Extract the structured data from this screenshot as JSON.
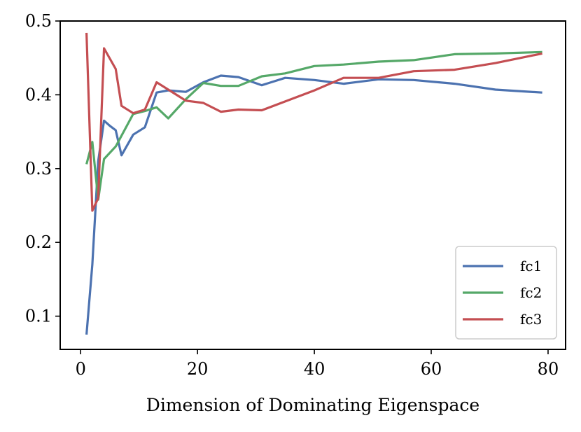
{
  "chart_data": {
    "type": "line",
    "title": "",
    "xlabel": "Dimension of Dominating Eigenspace",
    "ylabel": "",
    "xlim": [
      -3.5,
      83
    ],
    "ylim": [
      0.055,
      0.5
    ],
    "xticks": [
      0,
      20,
      40,
      60,
      80
    ],
    "xtick_labels": [
      "0",
      "20",
      "40",
      "60",
      "80"
    ],
    "yticks": [
      0.1,
      0.2,
      0.3,
      0.4,
      0.5
    ],
    "ytick_labels": [
      "0.1",
      "0.2",
      "0.3",
      "0.4",
      "0.5"
    ],
    "grid": false,
    "legend_position": "lower-right",
    "series": [
      {
        "name": "fc1",
        "color": "#4c72b0",
        "x": [
          1,
          2,
          3,
          4,
          5,
          6,
          7,
          9,
          11,
          13,
          15,
          18,
          21,
          24,
          27,
          31,
          35,
          40,
          45,
          51,
          57,
          64,
          71,
          79
        ],
        "y": [
          0.075,
          0.17,
          0.31,
          0.365,
          0.358,
          0.352,
          0.318,
          0.346,
          0.356,
          0.403,
          0.406,
          0.404,
          0.417,
          0.426,
          0.424,
          0.413,
          0.423,
          0.42,
          0.415,
          0.421,
          0.42,
          0.415,
          0.407,
          0.403
        ]
      },
      {
        "name": "fc2",
        "color": "#55a868",
        "x": [
          1,
          2,
          3,
          4,
          6,
          9,
          11,
          13,
          15,
          18,
          21,
          24,
          27,
          31,
          35,
          40,
          45,
          51,
          57,
          64,
          71,
          79
        ],
        "y": [
          0.306,
          0.336,
          0.258,
          0.313,
          0.33,
          0.374,
          0.378,
          0.383,
          0.368,
          0.394,
          0.416,
          0.412,
          0.412,
          0.425,
          0.429,
          0.439,
          0.441,
          0.445,
          0.447,
          0.455,
          0.456,
          0.458
        ]
      },
      {
        "name": "fc3",
        "color": "#c44e52",
        "x": [
          1,
          2,
          3,
          4,
          6,
          7,
          9,
          11,
          13,
          15,
          18,
          21,
          24,
          27,
          31,
          35,
          40,
          45,
          51,
          57,
          64,
          71,
          79
        ],
        "y": [
          0.484,
          0.243,
          0.26,
          0.463,
          0.435,
          0.385,
          0.375,
          0.38,
          0.417,
          0.407,
          0.392,
          0.389,
          0.377,
          0.38,
          0.379,
          0.391,
          0.406,
          0.423,
          0.423,
          0.432,
          0.434,
          0.443,
          0.456
        ]
      }
    ]
  }
}
